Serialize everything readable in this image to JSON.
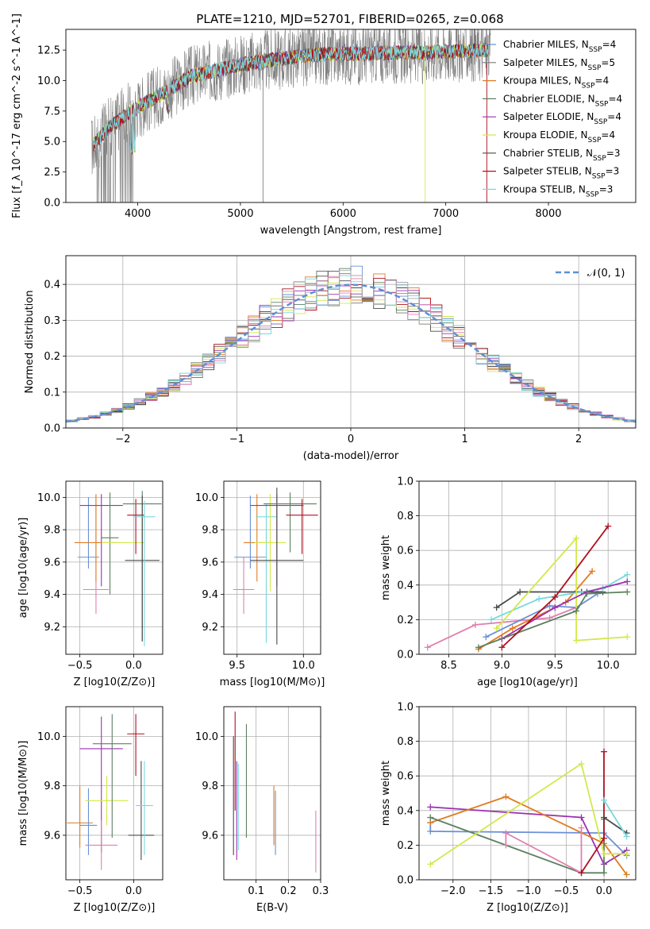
{
  "figure": {
    "title": "PLATE=1210, MJD=52701, FIBERID=0265, z=0.068"
  },
  "colors": {
    "data_spectrum": "#7f7f7f",
    "model_colors": [
      "#6b8fd6",
      "#7a7a7a",
      "#e07b20",
      "#5e8060",
      "#9b30b0",
      "#d4e84a",
      "#4a4a4a",
      "#b01020",
      "#7ad8de",
      "#e080b0",
      "#aaaaaa"
    ]
  },
  "chart_data": [
    {
      "id": "spectrum",
      "type": "line",
      "xlabel": "wavelength [Angstrom, rest frame]",
      "ylabel": "Flux [f_λ 10^-17 erg cm^-2 s^-1 A^-1]",
      "xlim": [
        3300,
        8850
      ],
      "ylim": [
        0,
        14.2
      ],
      "xticks": [
        4000,
        5000,
        6000,
        7000,
        8000
      ],
      "yticks": [
        0.0,
        2.5,
        5.0,
        7.5,
        10.0,
        12.5
      ],
      "grid": false,
      "legend_position": "upper right",
      "legend": [
        {
          "label": "Chabrier MILES, N_SSP=4",
          "color": "#6b8fd6"
        },
        {
          "label": "Salpeter MILES, N_SSP=5",
          "color": "#7a7a7a"
        },
        {
          "label": "Kroupa MILES, N_SSP=4",
          "color": "#e07b20"
        },
        {
          "label": "Chabrier ELODIE, N_SSP=4",
          "color": "#5e8060"
        },
        {
          "label": "Salpeter ELODIE, N_SSP=4",
          "color": "#9b30b0"
        },
        {
          "label": "Kroupa ELODIE, N_SSP=4",
          "color": "#d4e84a"
        },
        {
          "label": "Chabrier STELIB, N_SSP=3",
          "color": "#4a4a4a"
        },
        {
          "label": "Salpeter STELIB, N_SSP=3",
          "color": "#b01020"
        },
        {
          "label": "Kroupa STELIB, N_SSP=3",
          "color": "#7ad8de"
        }
      ],
      "continuum": {
        "x": [
          3550,
          3700,
          3900,
          4100,
          4300,
          4500,
          4800,
          5000,
          5300,
          5600,
          5900,
          6200,
          6500,
          6800,
          7100,
          7400
        ],
        "y": [
          4.5,
          6.0,
          7.3,
          8.3,
          9.2,
          10.3,
          10.9,
          11.3,
          11.7,
          12.0,
          12.2,
          12.2,
          12.3,
          12.3,
          12.4,
          12.5
        ]
      }
    },
    {
      "id": "residuals",
      "type": "histogram",
      "xlabel": "(data-model)/error",
      "ylabel": "Normed distribution",
      "xlim": [
        -2.5,
        2.5
      ],
      "ylim": [
        0,
        0.48
      ],
      "xticks": [
        -2,
        -1,
        0,
        1,
        2
      ],
      "yticks": [
        0.0,
        0.1,
        0.2,
        0.3,
        0.4
      ],
      "grid": true,
      "legend_position": "upper right",
      "gaussian_label": "𝒩(0, 1)",
      "gaussian_color": "#5b8fd8",
      "bin_edges_start": -2.6,
      "bin_width": 0.1
    },
    {
      "id": "age_vs_Z",
      "type": "errorbar",
      "xlabel": "Z [log10(Z/Z⊙)]",
      "ylabel": "age [log10(age/yr)]",
      "xlim": [
        -0.63,
        0.27
      ],
      "ylim": [
        9.03,
        10.1
      ],
      "xticks": [
        -0.5,
        0.0
      ],
      "yticks": [
        9.2,
        9.4,
        9.6,
        9.8,
        10.0
      ],
      "grid": true,
      "points": [
        {
          "x": -0.42,
          "xerr": 0.1,
          "y": 9.63,
          "yerr": [
            0.07,
            0.37
          ],
          "color": "#6b8fd6"
        },
        {
          "x": -0.35,
          "xerr": 0.12,
          "y": 9.43,
          "yerr": [
            0.15,
            0.58
          ],
          "color": "#e080b0"
        },
        {
          "x": -0.35,
          "xerr": 0.2,
          "y": 9.72,
          "yerr": [
            0.24,
            0.3
          ],
          "color": "#e07b20"
        },
        {
          "x": -0.3,
          "xerr": 0.2,
          "y": 9.95,
          "yerr": [
            0.5,
            0.07
          ],
          "color": "#9b30b0"
        },
        {
          "x": -0.22,
          "xerr": 0.08,
          "y": 9.75,
          "yerr": [
            0.35,
            0.28
          ],
          "color": "#5e8060"
        },
        {
          "x": -0.1,
          "xerr": 0.2,
          "y": 9.72,
          "yerr": [
            0.0,
            0.0
          ],
          "color": "#d4e84a"
        },
        {
          "x": 0.02,
          "xerr": 0.08,
          "y": 9.89,
          "yerr": [
            0.24,
            0.1
          ],
          "color": "#b01020"
        },
        {
          "x": 0.08,
          "xerr": 0.18,
          "y": 9.96,
          "yerr": [
            0.85,
            0.08
          ],
          "color": "#5e8060"
        },
        {
          "x": 0.08,
          "xerr": 0.16,
          "y": 9.61,
          "yerr": [
            0.5,
            0.4
          ],
          "color": "#4a4a4a"
        },
        {
          "x": 0.1,
          "xerr": 0.1,
          "y": 9.88,
          "yerr": [
            0.8,
            0.1
          ],
          "color": "#7ad8de"
        }
      ]
    },
    {
      "id": "age_vs_mass",
      "type": "errorbar",
      "xlabel": "mass [log10(M/M⊙)]",
      "ylabel": "",
      "xlim": [
        9.4,
        10.13
      ],
      "ylim": [
        9.03,
        10.1
      ],
      "xticks": [
        9.5,
        10.0
      ],
      "yticks": [
        9.2,
        9.4,
        9.6,
        9.8,
        10.0
      ],
      "grid": true,
      "points": [
        {
          "x": 9.55,
          "xerr": 0.08,
          "y": 9.43,
          "yerr": [
            0.15,
            0.2
          ],
          "color": "#e080b0"
        },
        {
          "x": 9.6,
          "xerr": 0.12,
          "y": 9.63,
          "yerr": [
            0.07,
            0.38
          ],
          "color": "#6b8fd6"
        },
        {
          "x": 9.65,
          "xerr": 0.1,
          "y": 9.72,
          "yerr": [
            0.24,
            0.3
          ],
          "color": "#e07b20"
        },
        {
          "x": 9.72,
          "xerr": 0.08,
          "y": 9.88,
          "yerr": [
            0.78,
            0.08
          ],
          "color": "#7ad8de"
        },
        {
          "x": 9.75,
          "xerr": 0.12,
          "y": 9.72,
          "yerr": [
            0.3,
            0.3
          ],
          "color": "#d4e84a"
        },
        {
          "x": 9.8,
          "xerr": 0.2,
          "y": 9.95,
          "yerr": [
            0.5,
            0.07
          ],
          "color": "#9b30b0"
        },
        {
          "x": 9.8,
          "xerr": 0.2,
          "y": 9.61,
          "yerr": [
            0.52,
            0.45
          ],
          "color": "#4a4a4a"
        },
        {
          "x": 9.9,
          "xerr": 0.2,
          "y": 9.96,
          "yerr": [
            0.3,
            0.07
          ],
          "color": "#5e8060"
        },
        {
          "x": 9.99,
          "xerr": 0.12,
          "y": 9.89,
          "yerr": [
            0.24,
            0.1
          ],
          "color": "#b01020"
        }
      ]
    },
    {
      "id": "weight_vs_age",
      "type": "line",
      "xlabel": "age [log10(age/yr)]",
      "ylabel": "mass weight",
      "xlim": [
        8.22,
        10.26
      ],
      "ylim": [
        0,
        1.0
      ],
      "xticks": [
        8.5,
        9.0,
        9.5,
        10.0
      ],
      "yticks": [
        0.0,
        0.2,
        0.4,
        0.6,
        0.8,
        1.0
      ],
      "grid": true,
      "series": [
        {
          "color": "#e080b0",
          "points": [
            [
              8.3,
              0.04
            ],
            [
              8.75,
              0.17
            ],
            [
              9.45,
              0.21
            ],
            [
              9.7,
              0.27
            ]
          ]
        },
        {
          "color": "#6b8fd6",
          "points": [
            [
              8.85,
              0.1
            ],
            [
              9.45,
              0.28
            ],
            [
              9.7,
              0.27
            ],
            [
              9.9,
              0.35
            ]
          ]
        },
        {
          "color": "#e07b20",
          "points": [
            [
              8.78,
              0.03
            ],
            [
              9.1,
              0.15
            ],
            [
              9.6,
              0.3
            ],
            [
              9.85,
              0.48
            ]
          ]
        },
        {
          "color": "#4a4a4a",
          "points": [
            [
              8.95,
              0.27
            ],
            [
              9.17,
              0.36
            ],
            [
              9.75,
              0.36
            ],
            [
              9.95,
              0.36
            ]
          ]
        },
        {
          "color": "#7ad8de",
          "points": [
            [
              8.9,
              0.2
            ],
            [
              9.35,
              0.32
            ],
            [
              9.95,
              0.38
            ],
            [
              10.18,
              0.46
            ]
          ]
        },
        {
          "color": "#d4e84a",
          "points": [
            [
              8.95,
              0.15
            ],
            [
              9.7,
              0.67
            ],
            [
              9.7,
              0.08
            ],
            [
              10.18,
              0.1
            ]
          ]
        },
        {
          "color": "#9b30b0",
          "points": [
            [
              9.0,
              0.09
            ],
            [
              9.5,
              0.27
            ],
            [
              9.8,
              0.36
            ],
            [
              10.18,
              0.42
            ]
          ]
        },
        {
          "color": "#5e8060",
          "points": [
            [
              8.78,
              0.04
            ],
            [
              9.7,
              0.25
            ],
            [
              9.8,
              0.35
            ],
            [
              10.18,
              0.36
            ]
          ]
        },
        {
          "color": "#b01020",
          "points": [
            [
              9.0,
              0.04
            ],
            [
              9.5,
              0.33
            ],
            [
              10.0,
              0.74
            ]
          ]
        }
      ]
    },
    {
      "id": "mass_vs_Z",
      "type": "errorbar",
      "xlabel": "Z [log10(Z/Z⊙)]",
      "ylabel": "mass [log10(M/M⊙)]",
      "xlim": [
        -0.63,
        0.27
      ],
      "ylim": [
        9.42,
        10.12
      ],
      "xticks": [
        -0.5,
        0.0
      ],
      "yticks": [
        9.6,
        9.8,
        10.0
      ],
      "grid": true,
      "points": [
        {
          "x": -0.5,
          "xerr": 0.12,
          "y": 9.65,
          "yerr": [
            0.1,
            0.15
          ],
          "color": "#e07b20"
        },
        {
          "x": -0.42,
          "xerr": 0.08,
          "y": 9.64,
          "yerr": [
            0.12,
            0.15
          ],
          "color": "#6b8fd6"
        },
        {
          "x": -0.3,
          "xerr": 0.2,
          "y": 9.95,
          "yerr": [
            0.42,
            0.13
          ],
          "color": "#9b30b0"
        },
        {
          "x": -0.25,
          "xerr": 0.2,
          "y": 9.74,
          "yerr": [
            0.1,
            0.1
          ],
          "color": "#d4e84a"
        },
        {
          "x": -0.3,
          "xerr": 0.15,
          "y": 9.56,
          "yerr": [
            0.1,
            0.1
          ],
          "color": "#e080b0"
        },
        {
          "x": -0.2,
          "xerr": 0.18,
          "y": 9.97,
          "yerr": [
            0.38,
            0.12
          ],
          "color": "#5e8060"
        },
        {
          "x": 0.02,
          "xerr": 0.08,
          "y": 10.01,
          "yerr": [
            0.17,
            0.08
          ],
          "color": "#b01020"
        },
        {
          "x": 0.07,
          "xerr": 0.12,
          "y": 9.6,
          "yerr": [
            0.1,
            0.3
          ],
          "color": "#4a4a4a"
        },
        {
          "x": 0.1,
          "xerr": 0.08,
          "y": 9.72,
          "yerr": [
            0.2,
            0.18
          ],
          "color": "#7ad8de"
        }
      ]
    },
    {
      "id": "mass_vs_ebv",
      "type": "errorbar",
      "xlabel": "E(B-V)",
      "ylabel": "",
      "xlim": [
        0.0,
        0.3
      ],
      "ylim": [
        9.42,
        10.12
      ],
      "xticks": [
        0.1,
        0.2,
        0.3
      ],
      "yticks": [
        9.6,
        9.8,
        10.0
      ],
      "grid": true,
      "points": [
        {
          "x": 0.03,
          "y": 9.7,
          "yerr": [
            0.18,
            0.3
          ],
          "color": "#4a4a4a"
        },
        {
          "x": 0.035,
          "y": 9.9,
          "yerr": [
            0.2,
            0.2
          ],
          "color": "#b01020"
        },
        {
          "x": 0.04,
          "y": 9.7,
          "yerr": [
            0.2,
            0.2
          ],
          "color": "#9b30b0"
        },
        {
          "x": 0.045,
          "y": 9.74,
          "yerr": [
            0.2,
            0.15
          ],
          "color": "#7ad8de"
        },
        {
          "x": 0.07,
          "y": 9.82,
          "yerr": [
            0.23,
            0.23
          ],
          "color": "#5e8060"
        },
        {
          "x": 0.155,
          "y": 9.66,
          "yerr": [
            0.1,
            0.14
          ],
          "color": "#e07b20"
        },
        {
          "x": 0.16,
          "y": 9.66,
          "yerr": [
            0.14,
            0.12
          ],
          "color": "#6b8fd6"
        },
        {
          "x": 0.285,
          "y": 9.57,
          "yerr": [
            0.12,
            0.13
          ],
          "color": "#e080b0"
        }
      ]
    },
    {
      "id": "weight_vs_Z",
      "type": "line",
      "xlabel": "Z [log10(Z/Z⊙)]",
      "ylabel": "mass weight",
      "xlim": [
        -2.45,
        0.42
      ],
      "ylim": [
        0,
        1.0
      ],
      "xticks": [
        -2.0,
        -1.5,
        -1.0,
        -0.5,
        0.0
      ],
      "yticks": [
        0.0,
        0.2,
        0.4,
        0.6,
        0.8,
        1.0
      ],
      "grid": true,
      "series": [
        {
          "color": "#6b8fd6",
          "points": [
            [
              -2.3,
              0.33
            ],
            [
              -2.3,
              0.28
            ],
            [
              0.0,
              0.27
            ],
            [
              0.3,
              0.14
            ]
          ]
        },
        {
          "color": "#9b30b0",
          "points": [
            [
              -2.3,
              0.42
            ],
            [
              -0.3,
              0.36
            ],
            [
              0.0,
              0.09
            ],
            [
              0.3,
              0.17
            ]
          ]
        },
        {
          "color": "#e07b20",
          "points": [
            [
              -2.3,
              0.33
            ],
            [
              -1.3,
              0.48
            ],
            [
              0.0,
              0.21
            ],
            [
              0.3,
              0.03
            ]
          ]
        },
        {
          "color": "#5e8060",
          "points": [
            [
              -2.3,
              0.36
            ],
            [
              -0.3,
              0.04
            ],
            [
              0.0,
              0.04
            ],
            [
              0.0,
              0.35
            ]
          ]
        },
        {
          "color": "#d4e84a",
          "points": [
            [
              -2.3,
              0.09
            ],
            [
              -0.3,
              0.67
            ],
            [
              0.0,
              0.15
            ],
            [
              0.3,
              0.15
            ]
          ]
        },
        {
          "color": "#e080b0",
          "points": [
            [
              -1.3,
              0.2
            ],
            [
              -1.3,
              0.27
            ],
            [
              -0.3,
              0.04
            ],
            [
              -0.3,
              0.3
            ]
          ]
        },
        {
          "color": "#b01020",
          "points": [
            [
              -0.3,
              0.04
            ],
            [
              0.0,
              0.24
            ],
            [
              0.0,
              0.74
            ]
          ]
        },
        {
          "color": "#4a4a4a",
          "points": [
            [
              0.0,
              0.36
            ],
            [
              0.3,
              0.27
            ]
          ]
        },
        {
          "color": "#7ad8de",
          "points": [
            [
              0.0,
              0.46
            ],
            [
              0.3,
              0.25
            ]
          ]
        }
      ]
    }
  ]
}
